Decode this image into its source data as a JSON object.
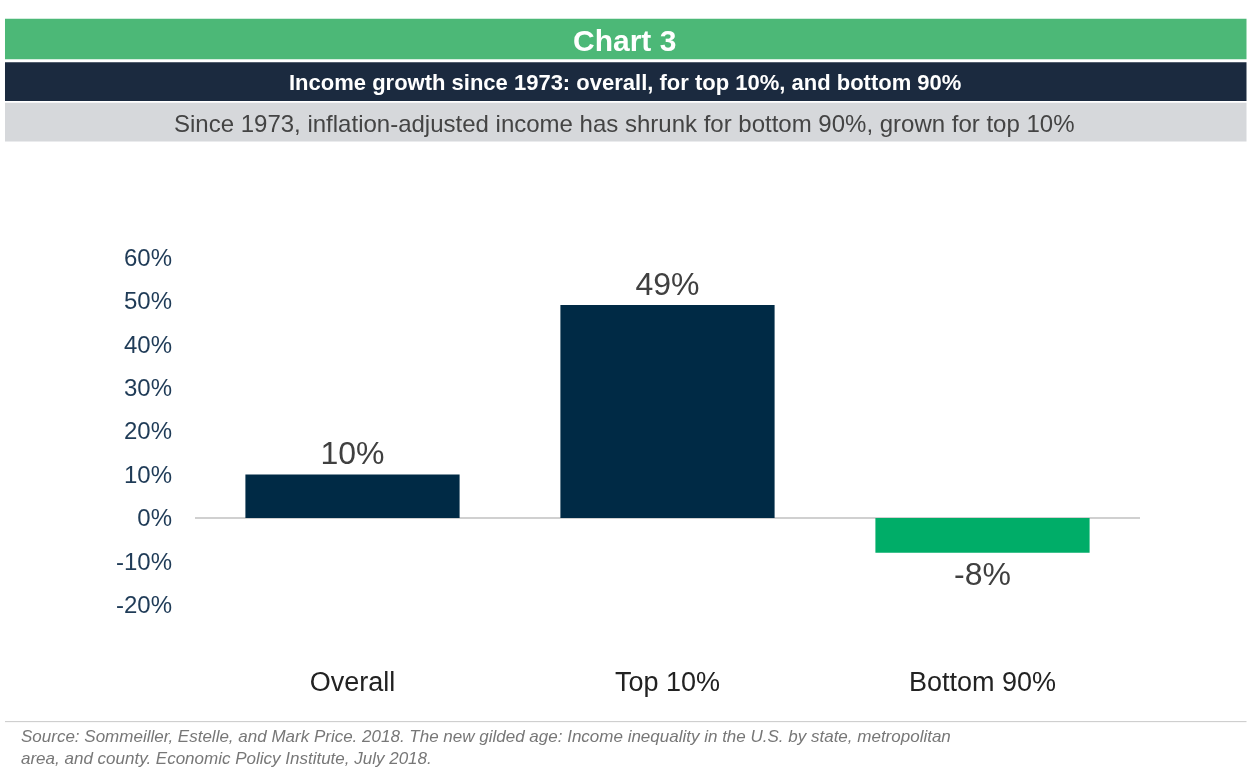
{
  "chart_data": {
    "type": "bar",
    "title": "Chart 3",
    "subtitle": "Income growth since 1973: overall, for top 10%, and bottom 90%",
    "categories": [
      "Overall",
      "Top 10%",
      "Bottom 90%"
    ],
    "values": [
      10,
      49,
      -8
    ],
    "colors": [
      "#002a45",
      "#002a45",
      "#00ad68"
    ],
    "value_labels": [
      "10%",
      "49%",
      "-8%"
    ],
    "ref_lines": [
      {
        "axis": "y",
        "value": 0,
        "color": "#d0d0d0"
      }
    ],
    "ylim": [
      -20,
      60
    ],
    "yticks": [
      {
        "value": -20,
        "label": "-20%"
      },
      {
        "value": -10,
        "label": "-10%"
      },
      {
        "value": 0,
        "label": "0%"
      },
      {
        "value": 10,
        "label": "10%"
      },
      {
        "value": 20,
        "label": "20%"
      },
      {
        "value": 30,
        "label": "30%"
      },
      {
        "value": 40,
        "label": "40%"
      },
      {
        "value": 50,
        "label": "50%"
      },
      {
        "value": 60,
        "label": "60%"
      }
    ],
    "grid": false,
    "annotations": [
      "Since 1973, inflation-adjusted income has shrunk for bottom 90%, grown for top 10%",
      "Source: Sommeiller, Estelle, and Mark Price. 2018. The new gilded age: Income inequality in the U.S. by state, metropolitan area, and county. Economic Policy Institute, July 2018."
    ]
  }
}
